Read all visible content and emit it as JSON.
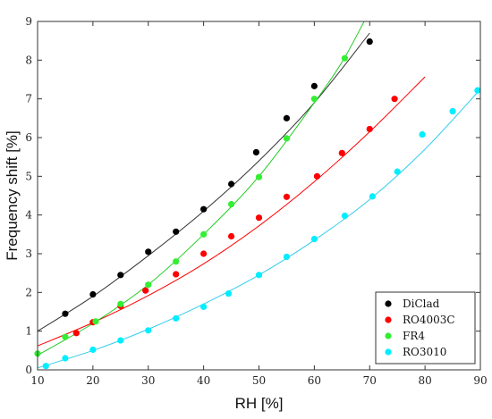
{
  "chart_data": {
    "type": "scatter",
    "xlabel": "RH [%]",
    "ylabel": "Frequency shift [%]",
    "xlim": [
      10,
      90
    ],
    "ylim": [
      0,
      9
    ],
    "xticks": [
      10,
      20,
      30,
      40,
      50,
      60,
      70,
      80,
      90
    ],
    "yticks": [
      0,
      1,
      2,
      3,
      4,
      5,
      6,
      7,
      8,
      9
    ],
    "grid": false,
    "legend_position": "bottom-right",
    "series": [
      {
        "name": "DiClad",
        "color": "#000000",
        "points": [
          [
            15,
            1.45
          ],
          [
            20,
            1.95
          ],
          [
            25,
            2.45
          ],
          [
            30,
            3.05
          ],
          [
            35,
            3.57
          ],
          [
            40,
            4.15
          ],
          [
            45,
            4.8
          ],
          [
            49.5,
            5.62
          ],
          [
            55,
            6.5
          ],
          [
            60,
            7.33
          ],
          [
            70,
            8.48
          ]
        ],
        "fit": [
          [
            10,
            1.0
          ],
          [
            20,
            1.9
          ],
          [
            30,
            2.95
          ],
          [
            40,
            4.1
          ],
          [
            50,
            5.4
          ],
          [
            60,
            6.9
          ],
          [
            70,
            8.7
          ]
        ],
        "fit_color": "#333333"
      },
      {
        "name": "RO4003C",
        "color": "#ff0000",
        "points": [
          [
            17,
            0.95
          ],
          [
            20,
            1.23
          ],
          [
            25,
            1.65
          ],
          [
            29.5,
            2.05
          ],
          [
            35,
            2.47
          ],
          [
            40,
            3.0
          ],
          [
            45,
            3.45
          ],
          [
            50,
            3.93
          ],
          [
            55,
            4.47
          ],
          [
            60.5,
            5.0
          ],
          [
            65,
            5.6
          ],
          [
            70,
            6.22
          ],
          [
            74.5,
            7.0
          ]
        ],
        "fit": [
          [
            10,
            0.62
          ],
          [
            20,
            1.22
          ],
          [
            30,
            1.92
          ],
          [
            40,
            2.74
          ],
          [
            50,
            3.72
          ],
          [
            60,
            4.86
          ],
          [
            70,
            6.15
          ],
          [
            80,
            7.57
          ]
        ],
        "fit_color": "#ff0000"
      },
      {
        "name": "FR4",
        "color": "#33ee33",
        "points": [
          [
            10,
            0.42
          ],
          [
            15,
            0.85
          ],
          [
            20.5,
            1.25
          ],
          [
            25,
            1.7
          ],
          [
            30,
            2.2
          ],
          [
            35,
            2.8
          ],
          [
            40,
            3.5
          ],
          [
            45,
            4.28
          ],
          [
            50,
            4.98
          ],
          [
            55,
            5.98
          ],
          [
            60,
            7.0
          ],
          [
            65.5,
            8.05
          ]
        ],
        "fit": [
          [
            10,
            0.38
          ],
          [
            20,
            1.2
          ],
          [
            30,
            2.2
          ],
          [
            40,
            3.5
          ],
          [
            50,
            5.0
          ],
          [
            60,
            6.9
          ],
          [
            65,
            7.95
          ],
          [
            69,
            9.0
          ]
        ],
        "fit_color": "#22cc22"
      },
      {
        "name": "RO3010",
        "color": "#00eeff",
        "points": [
          [
            11.5,
            0.1
          ],
          [
            15,
            0.3
          ],
          [
            20,
            0.52
          ],
          [
            25,
            0.76
          ],
          [
            30,
            1.02
          ],
          [
            35,
            1.33
          ],
          [
            40,
            1.63
          ],
          [
            44.5,
            1.97
          ],
          [
            50,
            2.45
          ],
          [
            55,
            2.92
          ],
          [
            60,
            3.38
          ],
          [
            65.5,
            3.98
          ],
          [
            70.5,
            4.48
          ],
          [
            75,
            5.12
          ],
          [
            79.5,
            6.08
          ],
          [
            85,
            6.68
          ],
          [
            89.5,
            7.22
          ]
        ],
        "fit": [
          [
            10,
            0.05
          ],
          [
            20,
            0.5
          ],
          [
            30,
            1.05
          ],
          [
            40,
            1.7
          ],
          [
            50,
            2.45
          ],
          [
            60,
            3.35
          ],
          [
            70,
            4.4
          ],
          [
            80,
            5.7
          ],
          [
            90,
            7.25
          ]
        ],
        "fit_color": "#33ccee"
      }
    ]
  }
}
